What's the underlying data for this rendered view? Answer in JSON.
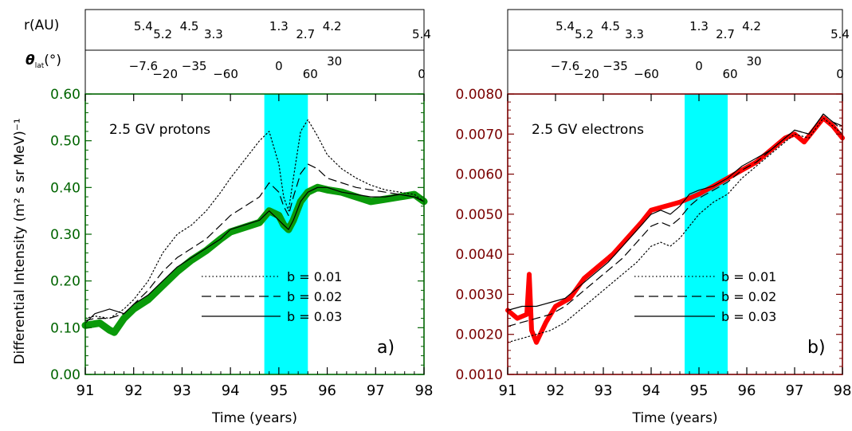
{
  "figure": {
    "ylabel": "Differential Intensity (m² s sr MeV)⁻¹",
    "r_label": "r(AU)",
    "theta_label": "θ",
    "theta_sub": "lat",
    "theta_unit": "(°)"
  },
  "colors": {
    "shade": "#00ffff",
    "protons_obs": "#0a9a0a",
    "electrons_obs": "#ff0000",
    "axis_a": "#006400",
    "axis_b": "#7a0000"
  },
  "chart_data": [
    {
      "type": "line",
      "panel_label": "a)",
      "annotation": "2.5 GV protons",
      "xlabel": "Time (years)",
      "xlim": [
        91,
        98
      ],
      "ylim": [
        0,
        0.6
      ],
      "xticks": [
        "91",
        "92",
        "93",
        "94",
        "95",
        "96",
        "97",
        "98"
      ],
      "yticks": [
        "0.00",
        "0.10",
        "0.20",
        "0.30",
        "0.40",
        "0.50",
        "0.60"
      ],
      "shaded_region": [
        94.7,
        95.6
      ],
      "top_axis_r": [
        {
          "x": 92.2,
          "label": "5.4"
        },
        {
          "x": 92.6,
          "label": "5.2"
        },
        {
          "x": 93.15,
          "label": "4.5"
        },
        {
          "x": 93.65,
          "label": "3.3"
        },
        {
          "x": 95.0,
          "label": "1.3"
        },
        {
          "x": 95.55,
          "label": "2.7"
        },
        {
          "x": 96.1,
          "label": "4.2"
        },
        {
          "x": 97.95,
          "label": "5.4"
        }
      ],
      "top_axis_theta": [
        {
          "x": 92.2,
          "label": "−7.6"
        },
        {
          "x": 92.65,
          "label": "−20"
        },
        {
          "x": 93.25,
          "label": "−35"
        },
        {
          "x": 93.9,
          "label": "−60"
        },
        {
          "x": 95.0,
          "label": "0"
        },
        {
          "x": 95.65,
          "label": "60"
        },
        {
          "x": 96.15,
          "label": "30"
        },
        {
          "x": 97.95,
          "label": "0"
        }
      ],
      "legend": [
        {
          "label": "b = 0.01",
          "style": "dotted"
        },
        {
          "label": "b = 0.02",
          "style": "dashed"
        },
        {
          "label": "b = 0.03",
          "style": "solid"
        }
      ],
      "series": [
        {
          "role": "observations",
          "style": "thick",
          "color": "#0a9a0a",
          "x": [
            91.0,
            91.3,
            91.5,
            91.6,
            91.8,
            92.0,
            92.3,
            92.6,
            92.9,
            93.2,
            93.5,
            93.8,
            94.0,
            94.3,
            94.6,
            94.8,
            95.0,
            95.1,
            95.2,
            95.3,
            95.45,
            95.6,
            95.8,
            96.0,
            96.3,
            96.6,
            96.9,
            97.2,
            97.5,
            97.8,
            98.0
          ],
          "y": [
            0.105,
            0.11,
            0.095,
            0.09,
            0.12,
            0.14,
            0.16,
            0.19,
            0.22,
            0.245,
            0.265,
            0.29,
            0.305,
            0.315,
            0.325,
            0.35,
            0.34,
            0.32,
            0.31,
            0.33,
            0.37,
            0.39,
            0.4,
            0.395,
            0.39,
            0.38,
            0.37,
            0.375,
            0.38,
            0.385,
            0.37
          ]
        },
        {
          "name": "b = 0.01",
          "style": "dotted",
          "x": [
            91.0,
            91.2,
            91.5,
            91.8,
            92.0,
            92.3,
            92.6,
            92.9,
            93.2,
            93.5,
            93.8,
            94.0,
            94.3,
            94.6,
            94.8,
            95.0,
            95.1,
            95.2,
            95.3,
            95.45,
            95.6,
            95.8,
            96.0,
            96.3,
            96.6,
            96.9,
            97.2,
            97.5,
            97.8,
            98.0
          ],
          "y": [
            0.12,
            0.125,
            0.12,
            0.14,
            0.16,
            0.2,
            0.26,
            0.3,
            0.32,
            0.35,
            0.39,
            0.42,
            0.46,
            0.5,
            0.52,
            0.45,
            0.38,
            0.35,
            0.42,
            0.52,
            0.545,
            0.51,
            0.47,
            0.44,
            0.42,
            0.405,
            0.395,
            0.39,
            0.385,
            0.37
          ]
        },
        {
          "name": "b = 0.02",
          "style": "dashed",
          "x": [
            91.0,
            91.2,
            91.5,
            91.8,
            92.0,
            92.3,
            92.6,
            92.9,
            93.2,
            93.5,
            93.8,
            94.0,
            94.3,
            94.6,
            94.8,
            95.0,
            95.1,
            95.2,
            95.3,
            95.45,
            95.6,
            95.8,
            96.0,
            96.3,
            96.6,
            96.9,
            97.2,
            97.5,
            97.8,
            98.0
          ],
          "y": [
            0.115,
            0.12,
            0.12,
            0.13,
            0.15,
            0.18,
            0.22,
            0.25,
            0.27,
            0.29,
            0.32,
            0.34,
            0.36,
            0.38,
            0.41,
            0.39,
            0.36,
            0.34,
            0.38,
            0.43,
            0.45,
            0.44,
            0.42,
            0.41,
            0.4,
            0.395,
            0.39,
            0.385,
            0.38,
            0.37
          ]
        },
        {
          "name": "b = 0.03",
          "style": "solid",
          "x": [
            91.0,
            91.2,
            91.5,
            91.8,
            92.0,
            92.3,
            92.6,
            92.9,
            93.2,
            93.5,
            93.8,
            94.0,
            94.3,
            94.6,
            94.8,
            95.0,
            95.1,
            95.2,
            95.3,
            95.45,
            95.6,
            95.8,
            96.0,
            96.3,
            96.6,
            96.9,
            97.2,
            97.5,
            97.8,
            98.0
          ],
          "y": [
            0.11,
            0.13,
            0.14,
            0.13,
            0.15,
            0.17,
            0.2,
            0.23,
            0.25,
            0.27,
            0.29,
            0.31,
            0.32,
            0.33,
            0.35,
            0.33,
            0.32,
            0.31,
            0.33,
            0.37,
            0.39,
            0.4,
            0.4,
            0.39,
            0.385,
            0.38,
            0.38,
            0.385,
            0.38,
            0.37
          ]
        }
      ]
    },
    {
      "type": "line",
      "panel_label": "b)",
      "annotation": "2.5 GV electrons",
      "xlabel": "Time (years)",
      "xlim": [
        91,
        98
      ],
      "ylim": [
        0.001,
        0.008
      ],
      "xticks": [
        "91",
        "92",
        "93",
        "94",
        "95",
        "96",
        "97",
        "98"
      ],
      "yticks": [
        "0.0010",
        "0.0020",
        "0.0030",
        "0.0040",
        "0.0050",
        "0.0060",
        "0.0070",
        "0.0080"
      ],
      "shaded_region": [
        94.7,
        95.6
      ],
      "top_axis_r": [
        {
          "x": 92.2,
          "label": "5.4"
        },
        {
          "x": 92.6,
          "label": "5.2"
        },
        {
          "x": 93.15,
          "label": "4.5"
        },
        {
          "x": 93.65,
          "label": "3.3"
        },
        {
          "x": 95.0,
          "label": "1.3"
        },
        {
          "x": 95.55,
          "label": "2.7"
        },
        {
          "x": 96.1,
          "label": "4.2"
        },
        {
          "x": 97.95,
          "label": "5.4"
        }
      ],
      "top_axis_theta": [
        {
          "x": 92.2,
          "label": "−7.6"
        },
        {
          "x": 92.65,
          "label": "−20"
        },
        {
          "x": 93.25,
          "label": "−35"
        },
        {
          "x": 93.9,
          "label": "−60"
        },
        {
          "x": 95.0,
          "label": "0"
        },
        {
          "x": 95.65,
          "label": "60"
        },
        {
          "x": 96.15,
          "label": "30"
        },
        {
          "x": 97.95,
          "label": "0"
        }
      ],
      "legend": [
        {
          "label": "b = 0.01",
          "style": "dotted"
        },
        {
          "label": "b = 0.02",
          "style": "dashed"
        },
        {
          "label": "b = 0.03",
          "style": "solid"
        }
      ],
      "series": [
        {
          "role": "observations",
          "style": "thick",
          "color": "#ff0000",
          "x": [
            91.0,
            91.2,
            91.4,
            91.45,
            91.5,
            91.6,
            91.8,
            92.0,
            92.3,
            92.6,
            92.9,
            93.2,
            93.5,
            93.8,
            94.0,
            94.3,
            94.6,
            94.8,
            95.0,
            95.3,
            95.6,
            95.9,
            96.2,
            96.5,
            96.8,
            97.0,
            97.2,
            97.4,
            97.6,
            97.8,
            98.0
          ],
          "y": [
            0.0026,
            0.0024,
            0.0025,
            0.0035,
            0.0021,
            0.0018,
            0.0023,
            0.0027,
            0.0029,
            0.0034,
            0.0037,
            0.004,
            0.0044,
            0.0048,
            0.0051,
            0.0052,
            0.0053,
            0.0054,
            0.0055,
            0.0057,
            0.0059,
            0.0061,
            0.0063,
            0.0066,
            0.0069,
            0.007,
            0.0068,
            0.0071,
            0.0074,
            0.0072,
            0.0069
          ]
        },
        {
          "name": "b = 0.01",
          "style": "dotted",
          "x": [
            91.0,
            91.3,
            91.6,
            91.9,
            92.2,
            92.5,
            92.8,
            93.1,
            93.4,
            93.7,
            94.0,
            94.2,
            94.4,
            94.6,
            94.8,
            95.0,
            95.3,
            95.6,
            95.9,
            96.2,
            96.5,
            96.8,
            97.0,
            97.3,
            97.6,
            97.8,
            98.0
          ],
          "y": [
            0.0018,
            0.0019,
            0.002,
            0.0021,
            0.0023,
            0.0026,
            0.0029,
            0.0032,
            0.0035,
            0.0038,
            0.0042,
            0.0043,
            0.0042,
            0.0044,
            0.0047,
            0.005,
            0.0053,
            0.0055,
            0.0059,
            0.0062,
            0.0065,
            0.0068,
            0.007,
            0.0069,
            0.0074,
            0.0072,
            0.007
          ]
        },
        {
          "name": "b = 0.02",
          "style": "dashed",
          "x": [
            91.0,
            91.3,
            91.6,
            91.9,
            92.2,
            92.5,
            92.8,
            93.1,
            93.4,
            93.7,
            94.0,
            94.2,
            94.4,
            94.6,
            94.8,
            95.0,
            95.3,
            95.6,
            95.9,
            96.2,
            96.5,
            96.8,
            97.0,
            97.3,
            97.6,
            97.8,
            98.0
          ],
          "y": [
            0.0022,
            0.0023,
            0.0024,
            0.0025,
            0.0027,
            0.003,
            0.0033,
            0.0036,
            0.0039,
            0.0043,
            0.0047,
            0.0048,
            0.0047,
            0.0049,
            0.0052,
            0.0054,
            0.0056,
            0.0058,
            0.0061,
            0.0063,
            0.0066,
            0.0069,
            0.0071,
            0.007,
            0.0075,
            0.0073,
            0.0071
          ]
        },
        {
          "name": "b = 0.03",
          "style": "solid",
          "x": [
            91.0,
            91.3,
            91.6,
            91.9,
            92.2,
            92.5,
            92.8,
            93.1,
            93.4,
            93.7,
            94.0,
            94.2,
            94.4,
            94.6,
            94.8,
            95.0,
            95.3,
            95.6,
            95.9,
            96.2,
            96.5,
            96.8,
            97.0,
            97.3,
            97.6,
            97.8,
            98.0
          ],
          "y": [
            0.0026,
            0.0027,
            0.0027,
            0.0028,
            0.0029,
            0.0032,
            0.0035,
            0.0038,
            0.0042,
            0.0046,
            0.005,
            0.0051,
            0.005,
            0.0052,
            0.0055,
            0.0056,
            0.0057,
            0.0059,
            0.0062,
            0.0064,
            0.0066,
            0.0069,
            0.0071,
            0.007,
            0.0075,
            0.0073,
            0.0072
          ]
        }
      ]
    }
  ]
}
